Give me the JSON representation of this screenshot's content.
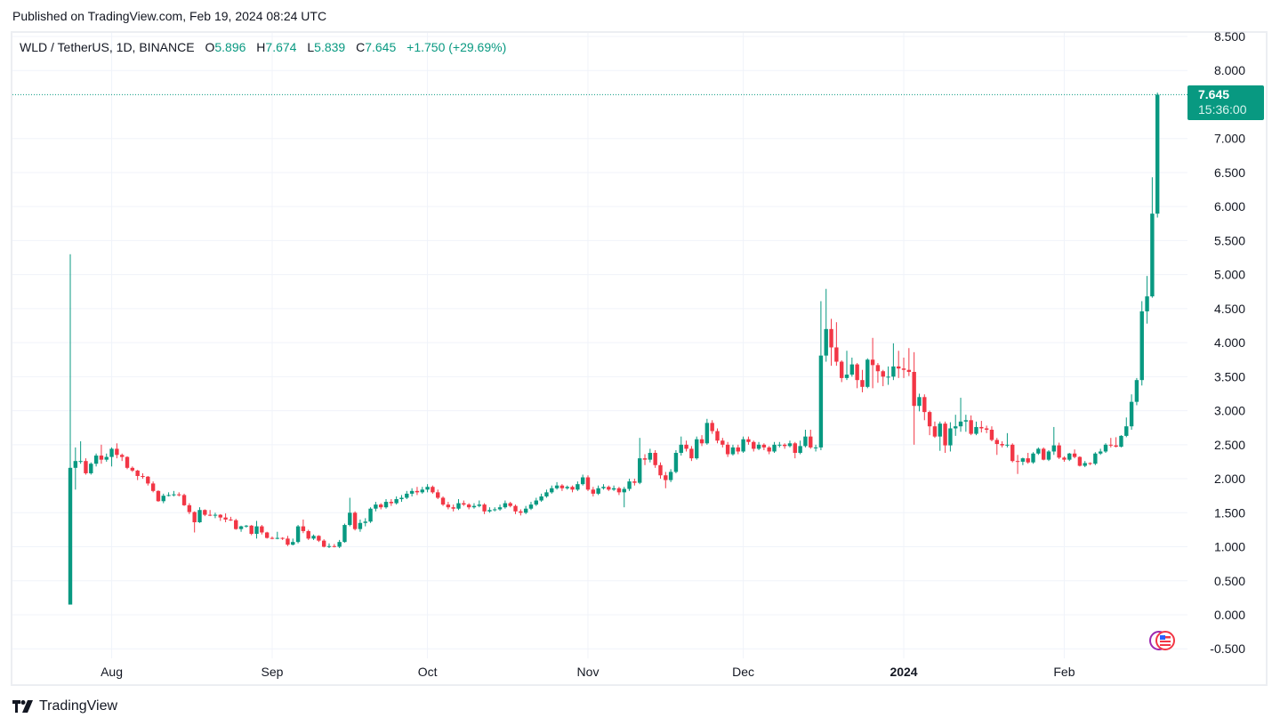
{
  "published": "Published on TradingView.com, Feb 19, 2024 08:24 UTC",
  "legend": {
    "symbol": "WLD / TetherUS, 1D, BINANCE",
    "o_label": "O",
    "o": "5.896",
    "h_label": "H",
    "h": "7.674",
    "l_label": "L",
    "l": "5.839",
    "c_label": "C",
    "c": "7.645",
    "change": "+1.750 (+29.69%)"
  },
  "price_tag": {
    "price": "7.645",
    "countdown": "15:36:00"
  },
  "brand": {
    "name": "TradingView"
  },
  "colors": {
    "up": "#089981",
    "down": "#f23645",
    "grid": "#f0f3fa",
    "text": "#131722"
  },
  "chart_data": {
    "type": "candlestick",
    "title": "WLD / TetherUS, 1D, BINANCE",
    "ylim": [
      -0.5,
      8.5
    ],
    "y_ticks": [
      "8.500",
      "8.000",
      "7.000",
      "6.500",
      "6.000",
      "5.500",
      "5.000",
      "4.500",
      "4.000",
      "3.500",
      "3.000",
      "2.500",
      "2.000",
      "1.500",
      "1.000",
      "0.500",
      "0.000",
      "-0.500"
    ],
    "x_ticks": [
      {
        "label": "Aug",
        "day_index": 8,
        "bold": false
      },
      {
        "label": "Sep",
        "day_index": 39,
        "bold": false
      },
      {
        "label": "Oct",
        "day_index": 69,
        "bold": false
      },
      {
        "label": "Nov",
        "day_index": 100,
        "bold": false
      },
      {
        "label": "Dec",
        "day_index": 130,
        "bold": false
      },
      {
        "label": "2024",
        "day_index": 161,
        "bold": true
      },
      {
        "label": "Feb",
        "day_index": 192,
        "bold": false
      }
    ],
    "start_date": "Jul 24, 2023",
    "end_date": "Feb 19, 2024",
    "last_price": 7.645,
    "ohlc": [
      [
        0.15,
        5.3,
        0.15,
        2.16
      ],
      [
        2.16,
        2.46,
        1.84,
        2.26
      ],
      [
        2.26,
        2.55,
        2.22,
        2.26
      ],
      [
        2.26,
        2.3,
        2.06,
        2.08
      ],
      [
        2.08,
        2.24,
        2.06,
        2.22
      ],
      [
        2.22,
        2.37,
        2.18,
        2.34
      ],
      [
        2.34,
        2.5,
        2.22,
        2.28
      ],
      [
        2.28,
        2.37,
        2.25,
        2.32
      ],
      [
        2.32,
        2.46,
        2.18,
        2.44
      ],
      [
        2.44,
        2.52,
        2.3,
        2.35
      ],
      [
        2.35,
        2.37,
        2.26,
        2.32
      ],
      [
        2.32,
        2.33,
        2.14,
        2.16
      ],
      [
        2.16,
        2.18,
        2.1,
        2.12
      ],
      [
        2.12,
        2.13,
        1.98,
        2.04
      ],
      [
        2.04,
        2.08,
        2.0,
        2.03
      ],
      [
        2.03,
        2.04,
        1.9,
        1.93
      ],
      [
        1.93,
        1.96,
        1.8,
        1.82
      ],
      [
        1.82,
        1.83,
        1.66,
        1.67
      ],
      [
        1.67,
        1.78,
        1.64,
        1.75
      ],
      [
        1.75,
        1.8,
        1.74,
        1.76
      ],
      [
        1.76,
        1.82,
        1.74,
        1.77
      ],
      [
        1.77,
        1.8,
        1.74,
        1.76
      ],
      [
        1.76,
        1.78,
        1.6,
        1.61
      ],
      [
        1.61,
        1.64,
        1.48,
        1.51
      ],
      [
        1.51,
        1.52,
        1.21,
        1.36
      ],
      [
        1.36,
        1.58,
        1.35,
        1.54
      ],
      [
        1.54,
        1.55,
        1.45,
        1.47
      ],
      [
        1.47,
        1.54,
        1.45,
        1.46
      ],
      [
        1.46,
        1.5,
        1.42,
        1.47
      ],
      [
        1.47,
        1.48,
        1.38,
        1.43
      ],
      [
        1.43,
        1.49,
        1.36,
        1.4
      ],
      [
        1.4,
        1.44,
        1.38,
        1.39
      ],
      [
        1.39,
        1.41,
        1.25,
        1.26
      ],
      [
        1.26,
        1.31,
        1.22,
        1.3
      ],
      [
        1.3,
        1.32,
        1.28,
        1.31
      ],
      [
        1.31,
        1.32,
        1.17,
        1.19
      ],
      [
        1.19,
        1.38,
        1.12,
        1.3
      ],
      [
        1.3,
        1.32,
        1.18,
        1.21
      ],
      [
        1.21,
        1.22,
        1.12,
        1.13
      ],
      [
        1.13,
        1.15,
        1.11,
        1.12
      ],
      [
        1.12,
        1.22,
        1.11,
        1.13
      ],
      [
        1.13,
        1.14,
        1.1,
        1.12
      ],
      [
        1.12,
        1.16,
        1.01,
        1.03
      ],
      [
        1.03,
        1.12,
        1.02,
        1.07
      ],
      [
        1.07,
        1.32,
        1.05,
        1.3
      ],
      [
        1.3,
        1.4,
        1.2,
        1.23
      ],
      [
        1.23,
        1.25,
        1.1,
        1.12
      ],
      [
        1.12,
        1.18,
        1.1,
        1.16
      ],
      [
        1.16,
        1.17,
        1.07,
        1.09
      ],
      [
        1.09,
        1.11,
        0.99,
        1.0
      ],
      [
        1.0,
        1.05,
        0.98,
        1.01
      ],
      [
        1.01,
        1.04,
        0.99,
        1.0
      ],
      [
        1.0,
        1.1,
        0.98,
        1.07
      ],
      [
        1.07,
        1.34,
        1.06,
        1.32
      ],
      [
        1.32,
        1.72,
        1.3,
        1.5
      ],
      [
        1.5,
        1.52,
        1.24,
        1.26
      ],
      [
        1.26,
        1.4,
        1.22,
        1.35
      ],
      [
        1.35,
        1.42,
        1.3,
        1.37
      ],
      [
        1.37,
        1.58,
        1.35,
        1.56
      ],
      [
        1.56,
        1.66,
        1.52,
        1.62
      ],
      [
        1.62,
        1.64,
        1.55,
        1.58
      ],
      [
        1.58,
        1.7,
        1.56,
        1.66
      ],
      [
        1.66,
        1.7,
        1.6,
        1.64
      ],
      [
        1.64,
        1.74,
        1.62,
        1.7
      ],
      [
        1.7,
        1.76,
        1.66,
        1.72
      ],
      [
        1.72,
        1.82,
        1.7,
        1.78
      ],
      [
        1.78,
        1.86,
        1.74,
        1.82
      ],
      [
        1.82,
        1.88,
        1.76,
        1.8
      ],
      [
        1.8,
        1.88,
        1.78,
        1.84
      ],
      [
        1.84,
        1.92,
        1.8,
        1.88
      ],
      [
        1.88,
        1.9,
        1.78,
        1.8
      ],
      [
        1.8,
        1.84,
        1.7,
        1.72
      ],
      [
        1.72,
        1.74,
        1.6,
        1.62
      ],
      [
        1.62,
        1.66,
        1.55,
        1.58
      ],
      [
        1.58,
        1.62,
        1.52,
        1.56
      ],
      [
        1.56,
        1.7,
        1.54,
        1.64
      ],
      [
        1.64,
        1.68,
        1.6,
        1.62
      ],
      [
        1.62,
        1.64,
        1.55,
        1.58
      ],
      [
        1.58,
        1.64,
        1.56,
        1.6
      ],
      [
        1.6,
        1.68,
        1.58,
        1.62
      ],
      [
        1.62,
        1.64,
        1.48,
        1.52
      ],
      [
        1.52,
        1.58,
        1.5,
        1.54
      ],
      [
        1.54,
        1.58,
        1.52,
        1.55
      ],
      [
        1.55,
        1.62,
        1.53,
        1.58
      ],
      [
        1.58,
        1.68,
        1.56,
        1.64
      ],
      [
        1.64,
        1.66,
        1.58,
        1.6
      ],
      [
        1.6,
        1.62,
        1.48,
        1.52
      ],
      [
        1.52,
        1.55,
        1.46,
        1.5
      ],
      [
        1.5,
        1.6,
        1.48,
        1.56
      ],
      [
        1.56,
        1.66,
        1.54,
        1.62
      ],
      [
        1.62,
        1.72,
        1.6,
        1.68
      ],
      [
        1.68,
        1.78,
        1.66,
        1.74
      ],
      [
        1.74,
        1.84,
        1.72,
        1.8
      ],
      [
        1.8,
        1.9,
        1.78,
        1.86
      ],
      [
        1.86,
        1.95,
        1.84,
        1.9
      ],
      [
        1.9,
        1.92,
        1.82,
        1.86
      ],
      [
        1.86,
        1.9,
        1.84,
        1.88
      ],
      [
        1.88,
        1.9,
        1.8,
        1.84
      ],
      [
        1.84,
        1.96,
        1.82,
        1.92
      ],
      [
        1.92,
        2.06,
        1.9,
        2.02
      ],
      [
        2.02,
        2.05,
        1.82,
        1.84
      ],
      [
        1.84,
        1.88,
        1.74,
        1.78
      ],
      [
        1.78,
        1.9,
        1.76,
        1.86
      ],
      [
        1.86,
        1.92,
        1.84,
        1.88
      ],
      [
        1.88,
        1.9,
        1.82,
        1.84
      ],
      [
        1.84,
        1.9,
        1.82,
        1.86
      ],
      [
        1.86,
        1.88,
        1.76,
        1.8
      ],
      [
        1.8,
        1.88,
        1.58,
        1.85
      ],
      [
        1.85,
        2.0,
        1.82,
        1.96
      ],
      [
        1.96,
        2.0,
        1.9,
        1.94
      ],
      [
        1.94,
        2.6,
        1.92,
        2.3
      ],
      [
        2.3,
        2.36,
        2.2,
        2.28
      ],
      [
        2.28,
        2.44,
        2.24,
        2.38
      ],
      [
        2.38,
        2.42,
        2.16,
        2.2
      ],
      [
        2.2,
        2.24,
        2.0,
        2.05
      ],
      [
        2.05,
        2.1,
        1.86,
        1.98
      ],
      [
        1.98,
        2.14,
        1.95,
        2.1
      ],
      [
        2.1,
        2.42,
        2.08,
        2.38
      ],
      [
        2.38,
        2.62,
        2.34,
        2.5
      ],
      [
        2.5,
        2.56,
        2.4,
        2.44
      ],
      [
        2.44,
        2.48,
        2.26,
        2.3
      ],
      [
        2.3,
        2.62,
        2.28,
        2.58
      ],
      [
        2.58,
        2.64,
        2.48,
        2.52
      ],
      [
        2.52,
        2.88,
        2.5,
        2.82
      ],
      [
        2.82,
        2.86,
        2.66,
        2.7
      ],
      [
        2.7,
        2.74,
        2.52,
        2.56
      ],
      [
        2.56,
        2.6,
        2.46,
        2.5
      ],
      [
        2.5,
        2.54,
        2.32,
        2.36
      ],
      [
        2.36,
        2.5,
        2.34,
        2.46
      ],
      [
        2.46,
        2.5,
        2.36,
        2.4
      ],
      [
        2.4,
        2.62,
        2.38,
        2.58
      ],
      [
        2.58,
        2.62,
        2.5,
        2.54
      ],
      [
        2.54,
        2.56,
        2.4,
        2.44
      ],
      [
        2.44,
        2.54,
        2.42,
        2.5
      ],
      [
        2.5,
        2.52,
        2.42,
        2.46
      ],
      [
        2.46,
        2.48,
        2.36,
        2.4
      ],
      [
        2.4,
        2.54,
        2.38,
        2.5
      ],
      [
        2.5,
        2.54,
        2.46,
        2.5
      ],
      [
        2.5,
        2.52,
        2.44,
        2.48
      ],
      [
        2.48,
        2.56,
        2.46,
        2.52
      ],
      [
        2.52,
        2.54,
        2.3,
        2.38
      ],
      [
        2.38,
        2.56,
        2.36,
        2.48
      ],
      [
        2.48,
        2.72,
        2.46,
        2.62
      ],
      [
        2.62,
        2.72,
        2.44,
        2.46
      ],
      [
        2.46,
        2.5,
        2.4,
        2.46
      ],
      [
        2.46,
        4.61,
        2.42,
        3.81
      ],
      [
        3.81,
        4.79,
        3.72,
        4.2
      ],
      [
        4.2,
        4.35,
        3.66,
        3.93
      ],
      [
        3.93,
        4.3,
        3.66,
        3.72
      ],
      [
        3.72,
        3.74,
        3.42,
        3.48
      ],
      [
        3.48,
        3.88,
        3.45,
        3.53
      ],
      [
        3.53,
        3.78,
        3.5,
        3.68
      ],
      [
        3.68,
        3.7,
        3.33,
        3.45
      ],
      [
        3.45,
        3.6,
        3.27,
        3.35
      ],
      [
        3.35,
        3.77,
        3.33,
        3.75
      ],
      [
        3.75,
        4.07,
        3.33,
        3.67
      ],
      [
        3.67,
        3.7,
        3.41,
        3.58
      ],
      [
        3.58,
        3.6,
        3.36,
        3.5
      ],
      [
        3.5,
        3.65,
        3.38,
        3.5
      ],
      [
        3.5,
        3.99,
        3.45,
        3.65
      ],
      [
        3.65,
        3.88,
        3.48,
        3.62
      ],
      [
        3.62,
        3.78,
        3.48,
        3.6
      ],
      [
        3.6,
        3.92,
        3.51,
        3.57
      ],
      [
        3.57,
        3.86,
        2.5,
        3.07
      ],
      [
        3.07,
        3.25,
        2.99,
        3.2
      ],
      [
        3.2,
        3.24,
        2.86,
        2.98
      ],
      [
        2.98,
        3.0,
        2.64,
        2.77
      ],
      [
        2.77,
        2.84,
        2.6,
        2.62
      ],
      [
        2.62,
        2.84,
        2.41,
        2.81
      ],
      [
        2.81,
        2.84,
        2.38,
        2.49
      ],
      [
        2.49,
        2.83,
        2.4,
        2.74
      ],
      [
        2.74,
        2.94,
        2.63,
        2.77
      ],
      [
        2.77,
        3.19,
        2.69,
        2.84
      ],
      [
        2.84,
        2.94,
        2.69,
        2.86
      ],
      [
        2.86,
        2.93,
        2.64,
        2.66
      ],
      [
        2.66,
        2.84,
        2.64,
        2.76
      ],
      [
        2.76,
        2.85,
        2.68,
        2.74
      ],
      [
        2.74,
        2.78,
        2.67,
        2.72
      ],
      [
        2.72,
        2.77,
        2.55,
        2.57
      ],
      [
        2.57,
        2.6,
        2.35,
        2.51
      ],
      [
        2.51,
        2.55,
        2.46,
        2.49
      ],
      [
        2.49,
        2.67,
        2.46,
        2.5
      ],
      [
        2.5,
        2.52,
        2.24,
        2.26
      ],
      [
        2.26,
        2.35,
        2.07,
        2.25
      ],
      [
        2.25,
        2.31,
        2.2,
        2.3
      ],
      [
        2.3,
        2.38,
        2.22,
        2.24
      ],
      [
        2.24,
        2.39,
        2.22,
        2.37
      ],
      [
        2.37,
        2.46,
        2.35,
        2.44
      ],
      [
        2.44,
        2.46,
        2.27,
        2.28
      ],
      [
        2.28,
        2.42,
        2.26,
        2.4
      ],
      [
        2.4,
        2.76,
        2.35,
        2.49
      ],
      [
        2.49,
        2.53,
        2.29,
        2.31
      ],
      [
        2.31,
        2.33,
        2.25,
        2.28
      ],
      [
        2.28,
        2.38,
        2.26,
        2.37
      ],
      [
        2.37,
        2.43,
        2.3,
        2.32
      ],
      [
        2.32,
        2.33,
        2.18,
        2.19
      ],
      [
        2.19,
        2.26,
        2.17,
        2.23
      ],
      [
        2.23,
        2.24,
        2.2,
        2.22
      ],
      [
        2.22,
        2.39,
        2.2,
        2.37
      ],
      [
        2.37,
        2.44,
        2.35,
        2.4
      ],
      [
        2.4,
        2.52,
        2.38,
        2.5
      ],
      [
        2.5,
        2.6,
        2.46,
        2.49
      ],
      [
        2.49,
        2.61,
        2.46,
        2.47
      ],
      [
        2.47,
        2.64,
        2.46,
        2.63
      ],
      [
        2.63,
        2.9,
        2.61,
        2.77
      ],
      [
        2.77,
        3.24,
        2.72,
        3.13
      ],
      [
        3.13,
        3.48,
        3.08,
        3.45
      ],
      [
        3.45,
        4.61,
        3.37,
        4.46
      ],
      [
        4.46,
        4.98,
        4.28,
        4.68
      ],
      [
        4.68,
        6.43,
        4.66,
        5.896
      ],
      [
        5.896,
        7.674,
        5.839,
        7.645
      ]
    ]
  }
}
